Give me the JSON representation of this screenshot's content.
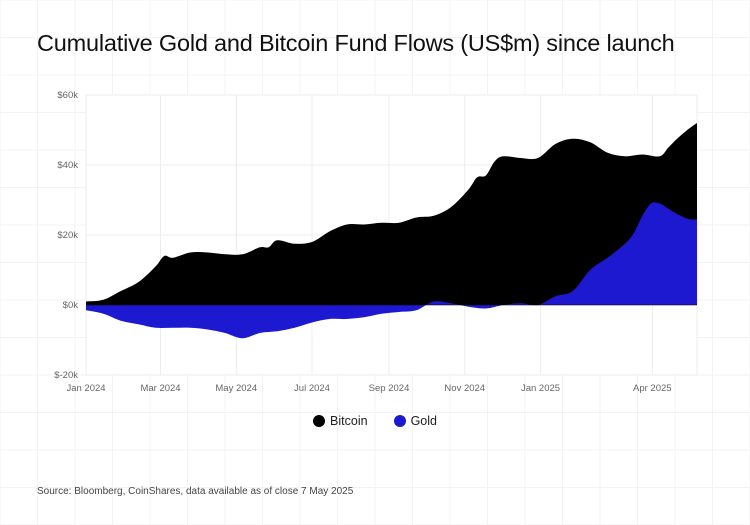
{
  "title": "Cumulative Gold and Bitcoin Fund Flows (US$m) since launch",
  "source": "Source: Bloomberg, CoinShares, data available as of close 7 May 2025",
  "colors": {
    "bitcoin": "#000000",
    "gold": "#1d19d0",
    "grid": "#ececec",
    "axis": "#999999"
  },
  "chart_data": {
    "type": "area",
    "title": "Cumulative Gold and Bitcoin Fund Flows (US$m) since launch",
    "xlabel": "",
    "ylabel": "",
    "x_tick_labels": [
      "Jan 2024",
      "Mar 2024",
      "May 2024",
      "Jul 2024",
      "Sep 2024",
      "Nov 2024",
      "Jan 2025",
      "Apr 2025"
    ],
    "y_tick_labels": [
      "$60k",
      "$40k",
      "$20k",
      "$0k",
      "$-20k"
    ],
    "y_ticks": [
      60000,
      40000,
      20000,
      0,
      -20000
    ],
    "ylim": [
      -20000,
      60000
    ],
    "xlim": [
      "2024-01-01",
      "2025-05-07"
    ],
    "grid": true,
    "legend": "bottom",
    "series": [
      {
        "name": "Bitcoin",
        "points": [
          [
            "2024-01-01",
            1000
          ],
          [
            "2024-01-15",
            1500
          ],
          [
            "2024-01-29",
            4000
          ],
          [
            "2024-02-12",
            6500
          ],
          [
            "2024-02-26",
            11000
          ],
          [
            "2024-03-04",
            14000
          ],
          [
            "2024-03-11",
            13500
          ],
          [
            "2024-03-25",
            15000
          ],
          [
            "2024-04-08",
            15000
          ],
          [
            "2024-04-22",
            14500
          ],
          [
            "2024-05-06",
            14500
          ],
          [
            "2024-05-20",
            16500
          ],
          [
            "2024-05-27",
            16500
          ],
          [
            "2024-06-03",
            18500
          ],
          [
            "2024-06-17",
            17500
          ],
          [
            "2024-07-01",
            18000
          ],
          [
            "2024-07-15",
            21000
          ],
          [
            "2024-07-29",
            23000
          ],
          [
            "2024-08-12",
            23000
          ],
          [
            "2024-08-26",
            23500
          ],
          [
            "2024-09-09",
            23500
          ],
          [
            "2024-09-23",
            25000
          ],
          [
            "2024-10-07",
            25500
          ],
          [
            "2024-10-21",
            28000
          ],
          [
            "2024-11-04",
            33000
          ],
          [
            "2024-11-11",
            36500
          ],
          [
            "2024-11-18",
            37000
          ],
          [
            "2024-11-25",
            41000
          ],
          [
            "2024-12-02",
            42500
          ],
          [
            "2024-12-16",
            42000
          ],
          [
            "2024-12-30",
            42000
          ],
          [
            "2025-01-13",
            46000
          ],
          [
            "2025-01-27",
            47500
          ],
          [
            "2025-02-10",
            46500
          ],
          [
            "2025-02-24",
            43500
          ],
          [
            "2025-03-10",
            42500
          ],
          [
            "2025-03-24",
            43000
          ],
          [
            "2025-04-07",
            42500
          ],
          [
            "2025-04-14",
            45000
          ],
          [
            "2025-04-21",
            47500
          ],
          [
            "2025-05-01",
            50500
          ],
          [
            "2025-05-07",
            52000
          ]
        ]
      },
      {
        "name": "Gold",
        "points": [
          [
            "2024-01-01",
            -1500
          ],
          [
            "2024-01-15",
            -2500
          ],
          [
            "2024-01-29",
            -4500
          ],
          [
            "2024-02-12",
            -5500
          ],
          [
            "2024-02-26",
            -6500
          ],
          [
            "2024-03-11",
            -6500
          ],
          [
            "2024-03-25",
            -6500
          ],
          [
            "2024-04-08",
            -7000
          ],
          [
            "2024-04-22",
            -8000
          ],
          [
            "2024-05-06",
            -9500
          ],
          [
            "2024-05-20",
            -8000
          ],
          [
            "2024-06-03",
            -7500
          ],
          [
            "2024-06-17",
            -6500
          ],
          [
            "2024-07-01",
            -5000
          ],
          [
            "2024-07-15",
            -4000
          ],
          [
            "2024-07-29",
            -4000
          ],
          [
            "2024-08-12",
            -3500
          ],
          [
            "2024-08-26",
            -2500
          ],
          [
            "2024-09-09",
            -2000
          ],
          [
            "2024-09-23",
            -1500
          ],
          [
            "2024-10-07",
            1000
          ],
          [
            "2024-10-21",
            500
          ],
          [
            "2024-11-04",
            -500
          ],
          [
            "2024-11-18",
            -1000
          ],
          [
            "2024-12-02",
            0
          ],
          [
            "2024-12-16",
            500
          ],
          [
            "2024-12-30",
            0
          ],
          [
            "2025-01-13",
            2500
          ],
          [
            "2025-01-27",
            4000
          ],
          [
            "2025-02-10",
            10000
          ],
          [
            "2025-02-24",
            13500
          ],
          [
            "2025-03-10",
            17500
          ],
          [
            "2025-03-17",
            20500
          ],
          [
            "2025-03-24",
            25500
          ],
          [
            "2025-03-31",
            29000
          ],
          [
            "2025-04-07",
            29000
          ],
          [
            "2025-04-14",
            27500
          ],
          [
            "2025-04-21",
            26000
          ],
          [
            "2025-05-01",
            24500
          ],
          [
            "2025-05-07",
            24500
          ]
        ]
      }
    ]
  }
}
